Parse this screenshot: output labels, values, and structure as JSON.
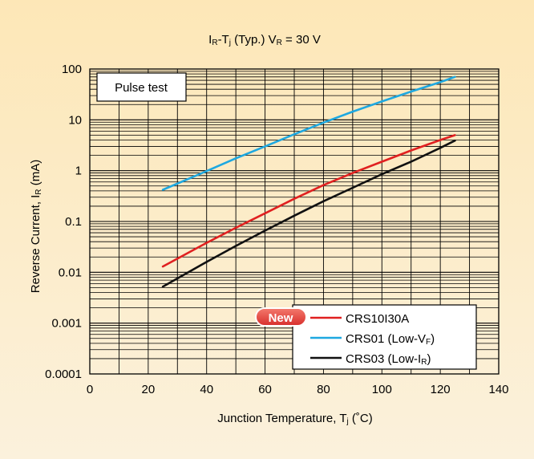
{
  "theme": {
    "bg_top": "#fde7b7",
    "bg_bottom": "#fbf1dc",
    "grid": "#000000",
    "badge": "#e8413d"
  },
  "chart_data": {
    "type": "line",
    "title": {
      "main": "I",
      "sub1": "R",
      "mid": "-T",
      "sub2": "j",
      "rest": " (Typ.) V",
      "sub3": "R",
      "end": " = 30 V"
    },
    "xlabel": {
      "main": "Junction Temperature, T",
      "sub": "j",
      "end": " (˚C)"
    },
    "ylabel": {
      "main": "Reverse Current, I",
      "sub": "R",
      "end": " (mA)"
    },
    "xlim": [
      0,
      140
    ],
    "ylim": [
      0.0001,
      100
    ],
    "y_scale": "log",
    "x_ticks": [
      "0",
      "20",
      "40",
      "60",
      "80",
      "100",
      "120",
      "140"
    ],
    "y_ticks": [
      "0.0001",
      "0.001",
      "0.01",
      "0.1",
      "1",
      "10",
      "100"
    ],
    "annotation": "Pulse test",
    "legend": {
      "placement": "bottom-right",
      "badge": "New",
      "entries": [
        {
          "name": "CRS10I30A",
          "name_sub": "",
          "name_end": ""
        },
        {
          "name": "CRS01 (Low-V",
          "name_sub": "F",
          "name_end": ")"
        },
        {
          "name": "CRS03 (Low-I",
          "name_sub": "R",
          "name_end": ")"
        }
      ]
    },
    "series": [
      {
        "name": "CRS10I30A",
        "color": "#e02020",
        "x": [
          25,
          40,
          50,
          60,
          70,
          80,
          90,
          100,
          110,
          120,
          125
        ],
        "y": [
          0.013,
          0.038,
          0.075,
          0.145,
          0.28,
          0.52,
          0.9,
          1.5,
          2.5,
          4.0,
          5.0
        ]
      },
      {
        "name": "CRS01 (Low-VF)",
        "color": "#1ea8e0",
        "x": [
          25,
          40,
          50,
          60,
          70,
          80,
          90,
          100,
          110,
          120,
          125
        ],
        "y": [
          0.42,
          0.98,
          1.75,
          3.0,
          5.2,
          8.8,
          14.5,
          23,
          36,
          55,
          70
        ]
      },
      {
        "name": "CRS03 (Low-IR)",
        "color": "#111111",
        "x": [
          25,
          40,
          50,
          60,
          70,
          80,
          90,
          100,
          110,
          120,
          125
        ],
        "y": [
          0.0052,
          0.016,
          0.033,
          0.066,
          0.13,
          0.25,
          0.46,
          0.85,
          1.5,
          2.8,
          3.9
        ]
      }
    ]
  }
}
